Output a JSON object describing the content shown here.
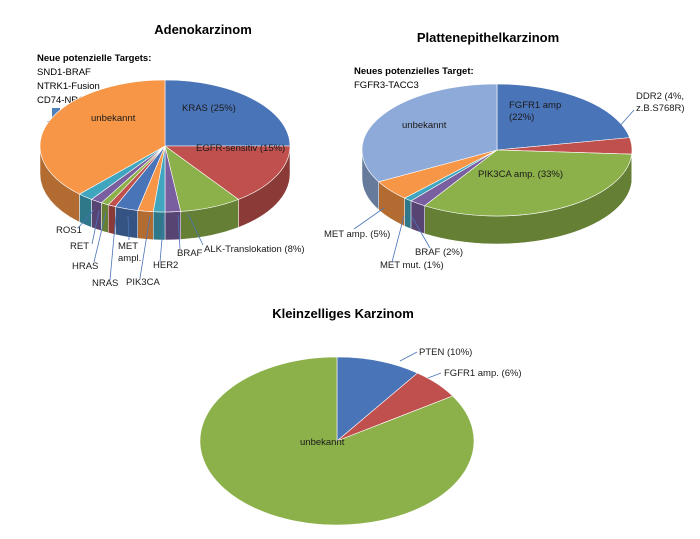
{
  "colors": {
    "blue": "#4a74b8",
    "red": "#c0504d",
    "green": "#8cb04a",
    "purple": "#7a5fa0",
    "teal": "#40a6bf",
    "orange": "#f79646",
    "lightblue": "#8eaad8",
    "arrow": "#4f81bd",
    "leader": "#4a74b8"
  },
  "chart_data": [
    {
      "type": "pie",
      "title": "Adenokarzinom",
      "notes_heading": "Neue potenzielle Targets:",
      "notes": [
        "SND1-BRAF",
        "NTRK1-Fusion",
        "CD74-NRG1"
      ],
      "slices": [
        {
          "label": "KRAS (25%)",
          "value": 25,
          "color": "#4a74b8"
        },
        {
          "label": "EGFR-sensitiv (15%)",
          "value": 15,
          "color": "#c0504d"
        },
        {
          "label": "ALK-Translokation (8%)",
          "value": 8,
          "color": "#8cb04a"
        },
        {
          "label": "BRAF",
          "value": 2,
          "color": "#7a5fa0"
        },
        {
          "label": "HER2",
          "value": 1.5,
          "color": "#40a6bf"
        },
        {
          "label": "PIK3CA",
          "value": 2,
          "color": "#f79646"
        },
        {
          "label": "MET ampl.",
          "value": 3,
          "color": "#4a74b8"
        },
        {
          "label": "NRAS",
          "value": 1,
          "color": "#c0504d"
        },
        {
          "label": "HRAS",
          "value": 1,
          "color": "#8cb04a"
        },
        {
          "label": "RET",
          "value": 1.5,
          "color": "#7a5fa0"
        },
        {
          "label": "ROS1",
          "value": 2,
          "color": "#40a6bf"
        },
        {
          "label": "unbekannt",
          "value": 38,
          "color": "#f79646"
        }
      ]
    },
    {
      "type": "pie",
      "title": "Plattenepithelkarzinom",
      "notes_heading": "Neues potenzielles Target:",
      "notes": [
        "FGFR3-TACC3"
      ],
      "slices": [
        {
          "label": "FGFR1 amp (22%)",
          "value": 22,
          "color": "#4a74b8"
        },
        {
          "label": "DDR2 (4%, z.B.S768R)",
          "value": 4,
          "color": "#c0504d"
        },
        {
          "label": "PIK3CA amp. (33%)",
          "value": 33,
          "color": "#8cb04a"
        },
        {
          "label": "BRAF (2%)",
          "value": 2,
          "color": "#7a5fa0"
        },
        {
          "label": "MET mut. (1%)",
          "value": 1,
          "color": "#40a6bf"
        },
        {
          "label": "MET amp. (5%)",
          "value": 5,
          "color": "#f79646"
        },
        {
          "label": "unbekannt",
          "value": 33,
          "color": "#8eaad8"
        }
      ]
    },
    {
      "type": "pie",
      "title": "Kleinzelliges Karzinom",
      "slices": [
        {
          "label": "PTEN (10%)",
          "value": 10,
          "color": "#4a74b8"
        },
        {
          "label": "FGFR1 amp. (6%)",
          "value": 6,
          "color": "#c0504d"
        },
        {
          "label": "unbekannt",
          "value": 84,
          "color": "#8cb04a"
        }
      ]
    }
  ]
}
